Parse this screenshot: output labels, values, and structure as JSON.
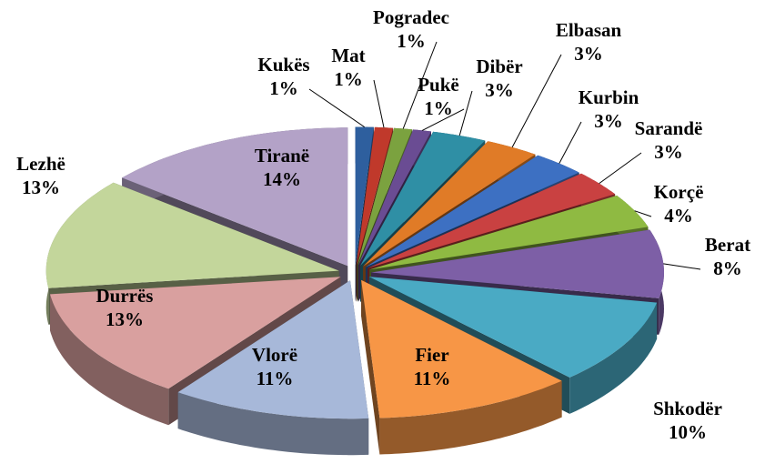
{
  "chart_data": {
    "type": "pie3d",
    "categories": [
      "Kukës",
      "Mat",
      "Pogradec",
      "Pukë",
      "Dibër",
      "Elbasan",
      "Kurbin",
      "Sarandë",
      "Korçë",
      "Berat",
      "Shkodër",
      "Fier",
      "Vlorë",
      "Durrës",
      "Lezhë",
      "Tiranë"
    ],
    "values": [
      1,
      1,
      1,
      1,
      3,
      3,
      3,
      3,
      4,
      8,
      10,
      11,
      11,
      13,
      13,
      14
    ],
    "value_labels": [
      "1%",
      "1%",
      "1%",
      "1%",
      "3%",
      "3%",
      "3%",
      "3%",
      "4%",
      "8%",
      "10%",
      "11%",
      "11%",
      "13%",
      "13%",
      "14%"
    ],
    "colors": [
      "#2e5f9e",
      "#c0392b",
      "#7ba23f",
      "#6a4c93",
      "#2f8fa5",
      "#e07b27",
      "#3d70c2",
      "#c94141",
      "#8fba42",
      "#7d5fa6",
      "#4aaac4",
      "#f79646",
      "#a7b8d9",
      "#d9a09f",
      "#c3d69b",
      "#b3a2c7"
    ]
  }
}
